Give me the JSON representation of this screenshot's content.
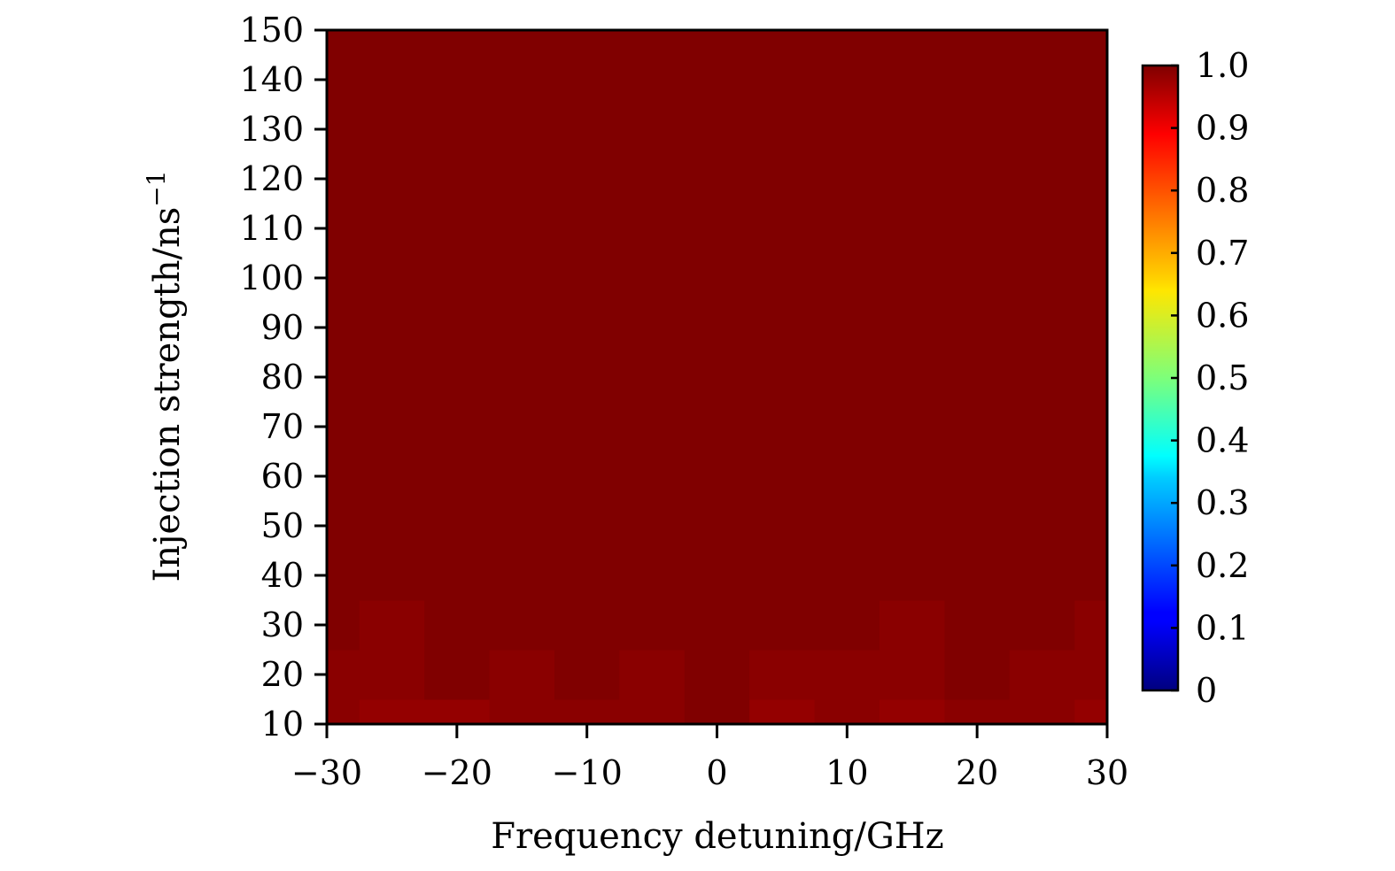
{
  "chart_data": {
    "type": "heatmap",
    "title": "",
    "xlabel": "Frequency detuning/GHz",
    "ylabel": "Injection strength/ns",
    "ylabel_superscript": "−1",
    "xlim": [
      -30,
      30
    ],
    "ylim": [
      10,
      150
    ],
    "xticks": [
      -30,
      -20,
      -10,
      0,
      10,
      20,
      30
    ],
    "xtick_labels": [
      "−30",
      "−20",
      "−10",
      "0",
      "10",
      "20",
      "30"
    ],
    "yticks": [
      10,
      20,
      30,
      40,
      50,
      60,
      70,
      80,
      90,
      100,
      110,
      120,
      130,
      140,
      150
    ],
    "ytick_labels": [
      "10",
      "20",
      "30",
      "40",
      "50",
      "60",
      "70",
      "80",
      "90",
      "100",
      "110",
      "120",
      "130",
      "140",
      "150"
    ],
    "colormap": "jet",
    "colorbar": {
      "range": [
        0,
        1.0
      ],
      "ticks": [
        0,
        0.1,
        0.2,
        0.3,
        0.4,
        0.5,
        0.6,
        0.7,
        0.8,
        0.9,
        1.0
      ],
      "tick_labels": [
        "0",
        "0.1",
        "0.2",
        "0.3",
        "0.4",
        "0.5",
        "0.6",
        "0.7",
        "0.8",
        "0.9",
        "1.0"
      ]
    },
    "grid": false,
    "x": [
      -30,
      -25,
      -20,
      -15,
      -10,
      -5,
      0,
      5,
      10,
      15,
      20,
      25,
      30
    ],
    "y": [
      10,
      20,
      30,
      40,
      50,
      60,
      70,
      80,
      90,
      100,
      110,
      120,
      130,
      140,
      150
    ],
    "z": [
      [
        0.99,
        0.98,
        0.98,
        0.99,
        0.99,
        0.99,
        1.0,
        0.98,
        0.99,
        0.98,
        0.99,
        0.99,
        0.98
      ],
      [
        0.99,
        0.99,
        1.0,
        0.99,
        1.0,
        0.99,
        1.0,
        0.99,
        0.99,
        0.99,
        1.0,
        0.99,
        0.99
      ],
      [
        1.0,
        0.99,
        1.0,
        1.0,
        1.0,
        1.0,
        1.0,
        1.0,
        1.0,
        0.99,
        1.0,
        1.0,
        0.99
      ],
      [
        1.0,
        1.0,
        1.0,
        1.0,
        1.0,
        1.0,
        1.0,
        1.0,
        1.0,
        1.0,
        1.0,
        1.0,
        1.0
      ],
      [
        1.0,
        1.0,
        1.0,
        1.0,
        1.0,
        1.0,
        1.0,
        1.0,
        1.0,
        1.0,
        1.0,
        1.0,
        1.0
      ],
      [
        1.0,
        1.0,
        1.0,
        1.0,
        1.0,
        1.0,
        1.0,
        1.0,
        1.0,
        1.0,
        1.0,
        1.0,
        1.0
      ],
      [
        1.0,
        1.0,
        1.0,
        1.0,
        1.0,
        1.0,
        1.0,
        1.0,
        1.0,
        1.0,
        1.0,
        1.0,
        1.0
      ],
      [
        1.0,
        1.0,
        1.0,
        1.0,
        1.0,
        1.0,
        1.0,
        1.0,
        1.0,
        1.0,
        1.0,
        1.0,
        1.0
      ],
      [
        1.0,
        1.0,
        1.0,
        1.0,
        1.0,
        1.0,
        1.0,
        1.0,
        1.0,
        1.0,
        1.0,
        1.0,
        1.0
      ],
      [
        1.0,
        1.0,
        1.0,
        1.0,
        1.0,
        1.0,
        1.0,
        1.0,
        1.0,
        1.0,
        1.0,
        1.0,
        1.0
      ],
      [
        1.0,
        1.0,
        1.0,
        1.0,
        1.0,
        1.0,
        1.0,
        1.0,
        1.0,
        1.0,
        1.0,
        1.0,
        1.0
      ],
      [
        1.0,
        1.0,
        1.0,
        1.0,
        1.0,
        1.0,
        1.0,
        1.0,
        1.0,
        1.0,
        1.0,
        1.0,
        1.0
      ],
      [
        1.0,
        1.0,
        1.0,
        1.0,
        1.0,
        1.0,
        1.0,
        1.0,
        1.0,
        1.0,
        1.0,
        1.0,
        1.0
      ],
      [
        1.0,
        1.0,
        1.0,
        1.0,
        1.0,
        1.0,
        1.0,
        1.0,
        1.0,
        1.0,
        1.0,
        1.0,
        1.0
      ],
      [
        1.0,
        1.0,
        1.0,
        1.0,
        1.0,
        1.0,
        1.0,
        1.0,
        1.0,
        1.0,
        1.0,
        1.0,
        1.0
      ]
    ]
  }
}
